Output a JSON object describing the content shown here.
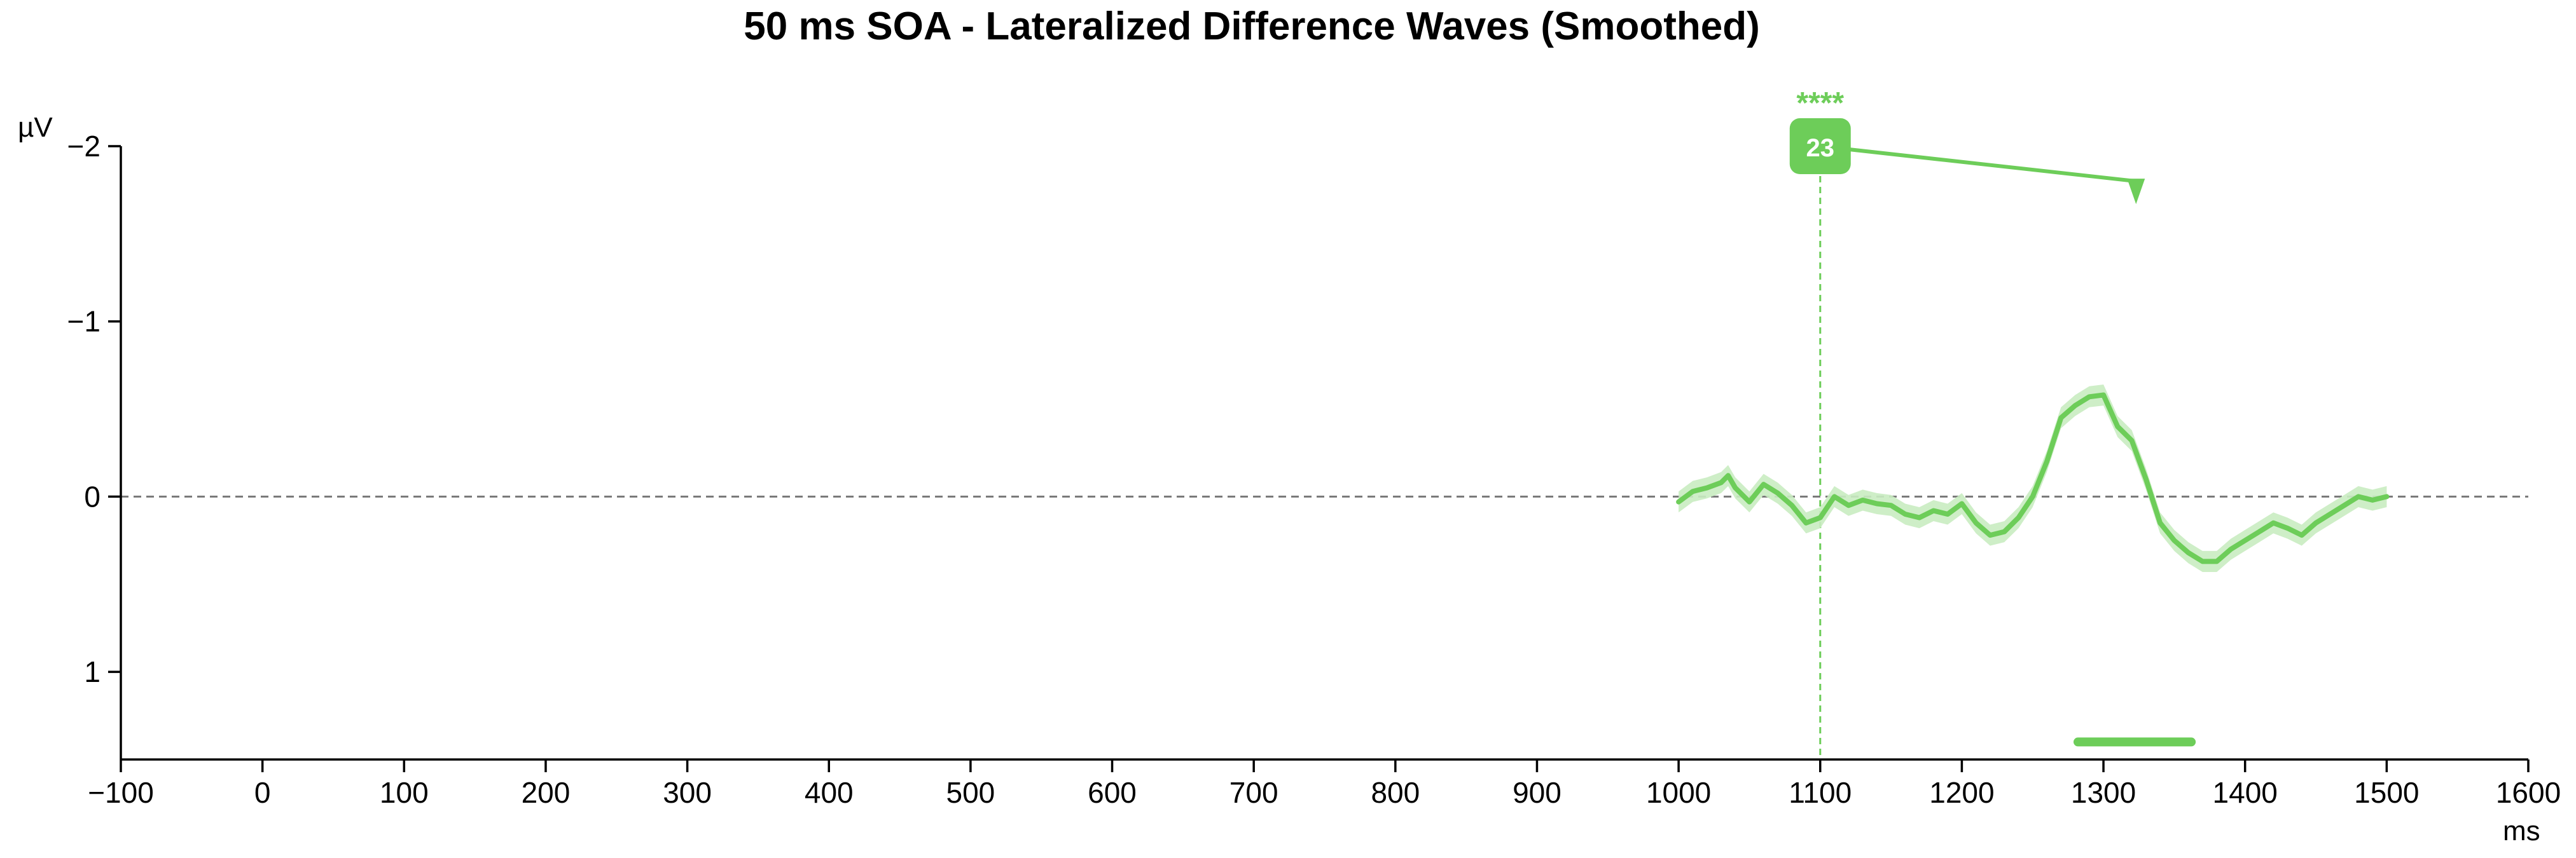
{
  "chart_data": {
    "type": "line",
    "title": "50 ms SOA - Lateralized Difference Waves (Smoothed)",
    "xlabel": "ms",
    "ylabel": "µV",
    "xlim": [
      -100,
      1600
    ],
    "ylim": [
      1.5,
      -2
    ],
    "y_inverted": true,
    "xticks": [
      -100,
      0,
      100,
      200,
      300,
      400,
      500,
      600,
      700,
      800,
      900,
      1000,
      1100,
      1200,
      1300,
      1400,
      1500,
      1600
    ],
    "yticks": [
      -2,
      -1,
      0,
      1
    ],
    "ytick_labels": [
      "−2",
      "−1",
      "0",
      "1"
    ],
    "xtick_labels": [
      "−100",
      "0",
      "100",
      "200",
      "300",
      "400",
      "500",
      "600",
      "700",
      "800",
      "900",
      "1000",
      "1100",
      "1200",
      "1300",
      "1400",
      "1500",
      "1600"
    ],
    "zero_line": 0,
    "grid": false,
    "colors": {
      "series": "#6dcd59",
      "band": "#c9ecc1",
      "zero_line": "#777777"
    },
    "series": [
      {
        "x": [
          1000,
          1010,
          1020,
          1030,
          1035,
          1040,
          1050,
          1060,
          1070,
          1080,
          1090,
          1100,
          1110,
          1120,
          1130,
          1140,
          1150,
          1160,
          1170,
          1180,
          1190,
          1200,
          1210,
          1220,
          1230,
          1240,
          1250,
          1260,
          1270,
          1280,
          1290,
          1300,
          1310,
          1320,
          1330,
          1340,
          1350,
          1360,
          1370,
          1380,
          1390,
          1400,
          1410,
          1420,
          1430,
          1440,
          1450,
          1460,
          1470,
          1480,
          1490,
          1500
        ],
        "y": [
          0.03,
          -0.03,
          -0.05,
          -0.08,
          -0.12,
          -0.05,
          0.03,
          -0.07,
          -0.02,
          0.05,
          0.15,
          0.12,
          0.0,
          0.05,
          0.02,
          0.04,
          0.05,
          0.1,
          0.12,
          0.08,
          0.1,
          0.04,
          0.15,
          0.22,
          0.2,
          0.12,
          0.0,
          -0.2,
          -0.45,
          -0.52,
          -0.57,
          -0.58,
          -0.4,
          -0.32,
          -0.1,
          0.15,
          0.25,
          0.32,
          0.37,
          0.37,
          0.3,
          0.25,
          0.2,
          0.15,
          0.18,
          0.22,
          0.15,
          0.1,
          0.05,
          0.0,
          0.02,
          0.0
        ],
        "ci_halfwidth": 0.06
      }
    ],
    "annotations": {
      "vline_x": 1100,
      "badge_text": "23",
      "stars": "****",
      "arrow_from": [
        1100,
        -2.0
      ],
      "arrow_to": [
        1323,
        -1.8
      ],
      "significance_bar": [
        1282,
        1362
      ],
      "significance_bar_y": 1.4
    }
  }
}
